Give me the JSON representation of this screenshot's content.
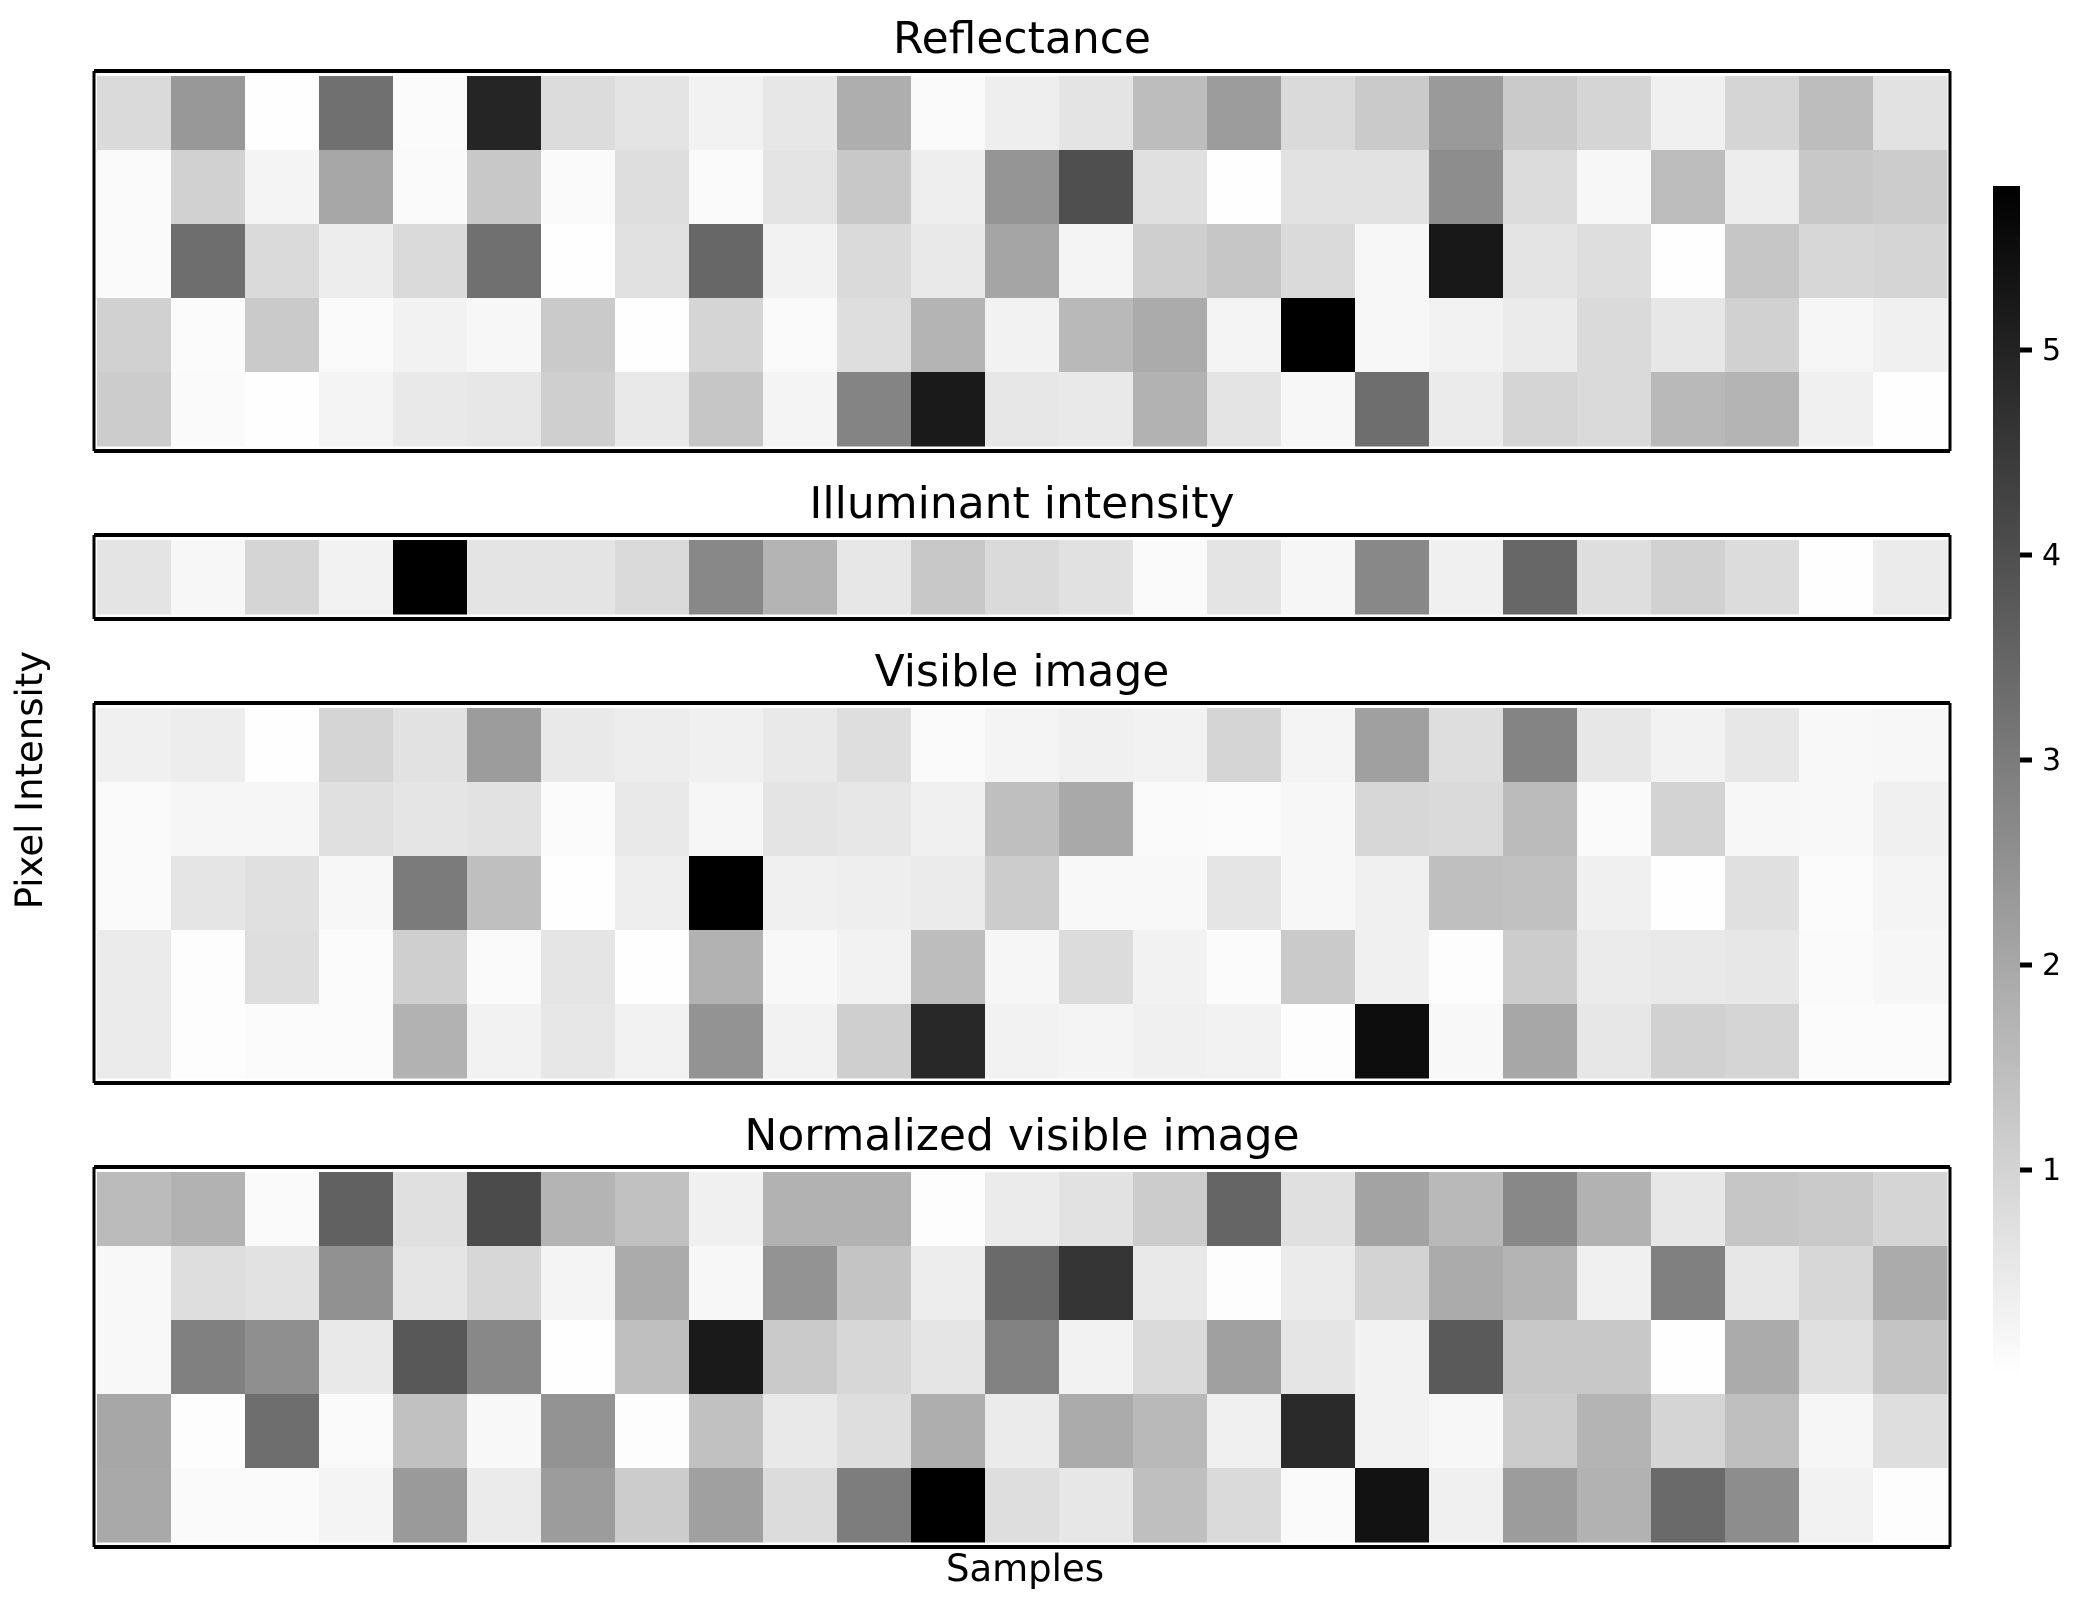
{
  "chart_data": [
    {
      "type": "heatmap",
      "title": "Reflectance",
      "values": [
        [
          0.85,
          2.35,
          0.02,
          3.25,
          0.08,
          4.95,
          0.8,
          0.62,
          0.3,
          0.55,
          1.85,
          0.12,
          0.38,
          0.62,
          1.5,
          2.25,
          0.85,
          1.2,
          2.3,
          1.2,
          0.95,
          0.35,
          0.95,
          1.5,
          0.65
        ],
        [
          0.12,
          1.05,
          0.25,
          2.0,
          0.12,
          1.25,
          0.12,
          0.75,
          0.12,
          0.62,
          1.25,
          0.38,
          2.4,
          4.0,
          0.7,
          0.02,
          0.65,
          0.65,
          2.6,
          0.8,
          0.18,
          1.5,
          0.4,
          1.25,
          1.15
        ],
        [
          0.12,
          3.3,
          0.85,
          0.42,
          0.85,
          3.25,
          0.02,
          0.68,
          3.45,
          0.3,
          0.85,
          0.5,
          2.05,
          0.25,
          1.1,
          1.3,
          0.85,
          0.18,
          5.25,
          0.62,
          0.75,
          0.02,
          1.3,
          0.9,
          0.95
        ],
        [
          1.05,
          0.08,
          1.2,
          0.12,
          0.3,
          0.18,
          1.2,
          0.02,
          0.95,
          0.12,
          0.75,
          1.7,
          0.3,
          1.6,
          1.9,
          0.25,
          5.8,
          0.18,
          0.3,
          0.45,
          0.85,
          0.55,
          1.05,
          0.2,
          0.35
        ],
        [
          1.15,
          0.12,
          0.02,
          0.25,
          0.5,
          0.55,
          1.1,
          0.5,
          1.3,
          0.25,
          2.8,
          5.2,
          0.55,
          0.5,
          1.75,
          0.62,
          0.18,
          3.3,
          0.45,
          0.95,
          0.85,
          1.6,
          1.7,
          0.35,
          0.02
        ]
      ],
      "vmin": 0,
      "vmax": 5.8,
      "colormap": "Greys"
    },
    {
      "type": "heatmap",
      "title": "Illuminant intensity",
      "values": [
        [
          0.62,
          0.18,
          0.95,
          0.3,
          5.8,
          0.62,
          0.62,
          0.85,
          2.7,
          1.7,
          0.55,
          1.25,
          0.85,
          0.68,
          0.12,
          0.62,
          0.2,
          2.7,
          0.35,
          3.45,
          0.75,
          1.05,
          0.8,
          0.02,
          0.45
        ]
      ],
      "vmin": 0,
      "vmax": 5.8,
      "colormap": "Greys"
    },
    {
      "type": "heatmap",
      "title": "Visible image",
      "values": [
        [
          0.35,
          0.4,
          0.02,
          0.95,
          0.65,
          2.25,
          0.5,
          0.42,
          0.35,
          0.5,
          0.75,
          0.12,
          0.25,
          0.35,
          0.3,
          0.95,
          0.25,
          2.15,
          0.75,
          2.8,
          0.55,
          0.3,
          0.55,
          0.15,
          0.18
        ],
        [
          0.12,
          0.2,
          0.2,
          0.7,
          0.6,
          0.65,
          0.08,
          0.5,
          0.2,
          0.62,
          0.55,
          0.35,
          1.45,
          1.95,
          0.12,
          0.08,
          0.18,
          0.9,
          0.85,
          1.55,
          0.12,
          1.0,
          0.18,
          0.15,
          0.35
        ],
        [
          0.12,
          0.6,
          0.7,
          0.18,
          3.0,
          1.45,
          0.02,
          0.38,
          5.8,
          0.35,
          0.38,
          0.45,
          1.15,
          0.15,
          0.15,
          0.6,
          0.18,
          0.35,
          1.45,
          1.4,
          0.35,
          0.02,
          0.7,
          0.08,
          0.25
        ],
        [
          0.45,
          0.05,
          0.75,
          0.08,
          1.1,
          0.12,
          0.6,
          0.02,
          1.75,
          0.15,
          0.3,
          1.5,
          0.2,
          0.8,
          0.3,
          0.08,
          1.2,
          0.35,
          0.05,
          1.15,
          0.45,
          0.5,
          0.55,
          0.12,
          0.2
        ],
        [
          0.45,
          0.05,
          0.08,
          0.1,
          1.75,
          0.3,
          0.55,
          0.3,
          2.45,
          0.3,
          1.1,
          4.9,
          0.3,
          0.25,
          0.35,
          0.3,
          0.05,
          5.5,
          0.15,
          2.0,
          0.55,
          1.05,
          0.95,
          0.1,
          0.08
        ]
      ],
      "vmin": 0,
      "vmax": 5.8,
      "colormap": "Greys"
    },
    {
      "type": "heatmap",
      "title": "Normalized visible image",
      "xlabel": "Samples",
      "values": [
        [
          1.55,
          1.75,
          0.12,
          3.6,
          0.7,
          4.1,
          1.7,
          1.4,
          0.35,
          1.75,
          1.75,
          0.05,
          0.45,
          0.65,
          1.15,
          3.5,
          0.7,
          2.1,
          1.6,
          2.7,
          1.75,
          0.55,
          1.3,
          1.2,
          0.95
        ],
        [
          0.15,
          0.75,
          0.65,
          2.5,
          0.6,
          0.9,
          0.25,
          1.9,
          0.18,
          2.45,
          1.35,
          0.4,
          3.4,
          4.6,
          0.5,
          0.05,
          0.45,
          1.0,
          1.9,
          1.7,
          0.35,
          2.9,
          0.55,
          0.9,
          1.9
        ],
        [
          0.15,
          2.9,
          2.55,
          0.5,
          3.8,
          2.7,
          0.02,
          1.45,
          5.2,
          1.2,
          0.9,
          0.6,
          2.85,
          0.3,
          0.85,
          2.15,
          0.6,
          0.3,
          3.75,
          1.25,
          1.25,
          0.02,
          1.9,
          0.7,
          1.35
        ],
        [
          2.0,
          0.05,
          3.3,
          0.12,
          1.4,
          0.15,
          2.45,
          0.05,
          1.4,
          0.5,
          0.75,
          1.85,
          0.45,
          1.9,
          1.6,
          0.35,
          4.85,
          0.3,
          0.18,
          1.15,
          1.7,
          0.95,
          1.45,
          0.2,
          0.75
        ],
        [
          1.95,
          0.12,
          0.12,
          0.25,
          2.3,
          0.45,
          2.25,
          1.15,
          2.15,
          0.8,
          2.95,
          5.8,
          0.75,
          0.55,
          1.45,
          0.85,
          0.12,
          5.4,
          0.35,
          2.25,
          1.75,
          3.4,
          2.6,
          0.3,
          0.05
        ]
      ],
      "vmin": 0,
      "vmax": 5.8,
      "colormap": "Greys"
    }
  ],
  "axes": {
    "ylabel": "Pixel Intensity",
    "xlabel": "Samples"
  },
  "colorbar": {
    "ticks": [
      1,
      2,
      3,
      4,
      5
    ],
    "tick_labels": [
      "1",
      "2",
      "3",
      "4",
      "5"
    ],
    "vmin": 0,
    "vmax": 5.8,
    "colormap": "Greys"
  }
}
